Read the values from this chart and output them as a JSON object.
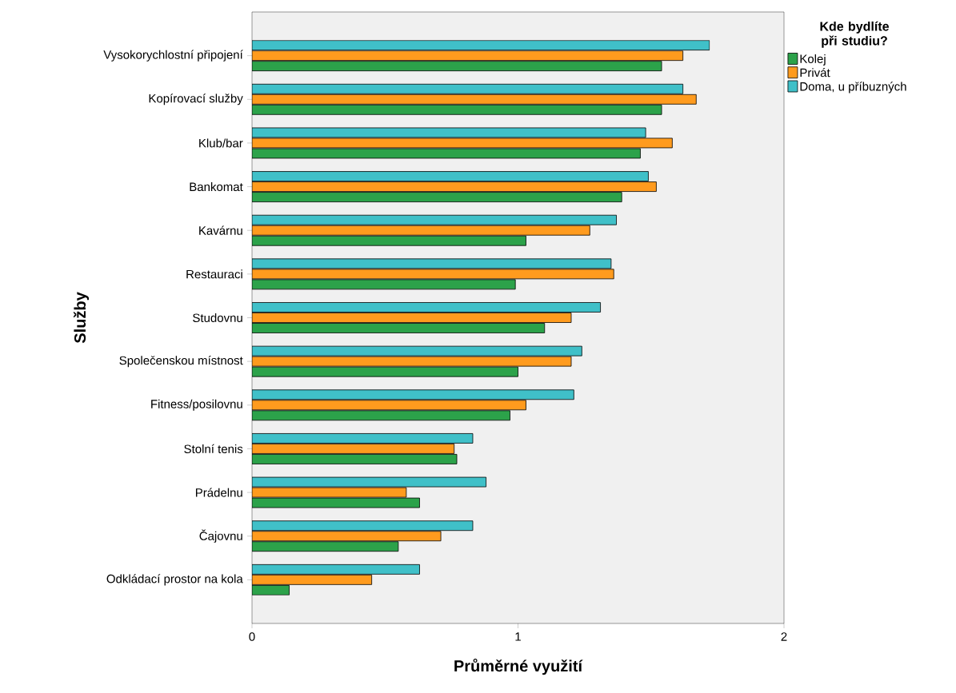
{
  "chart_data": {
    "type": "bar",
    "orientation": "horizontal",
    "xlabel": "Průměrné využití",
    "ylabel": "Služby",
    "legend_title": "Kde bydlíte při studiu?",
    "legend": "top right",
    "categories": [
      "Vysokorychlostní připojení",
      "Kopírovací služby",
      "Klub/bar",
      "Bankomat",
      "Kavárnu",
      "Restauraci",
      "Studovnu",
      "Společenskou místnost",
      "Fitness/posilovnu",
      "Stolní tenis",
      "Prádelnu",
      "Čajovnu",
      "Odkládací prostor na kola"
    ],
    "series": [
      {
        "name": "Kolej",
        "color": "#2ca24a",
        "values": [
          1.54,
          1.54,
          1.46,
          1.39,
          1.03,
          0.99,
          1.1,
          1.0,
          0.97,
          0.77,
          0.63,
          0.55,
          0.14
        ]
      },
      {
        "name": "Privát",
        "color": "#ff9b1e",
        "values": [
          1.62,
          1.67,
          1.58,
          1.52,
          1.27,
          1.36,
          1.2,
          1.2,
          1.03,
          0.76,
          0.58,
          0.71,
          0.45
        ]
      },
      {
        "name": "Doma, u příbuzných",
        "color": "#40c0c8",
        "values": [
          1.72,
          1.62,
          1.48,
          1.49,
          1.37,
          1.35,
          1.31,
          1.24,
          1.21,
          0.83,
          0.88,
          0.83,
          0.63
        ]
      }
    ],
    "xlim": [
      0,
      2
    ],
    "xticks": [
      0,
      1,
      2
    ],
    "grid": false
  }
}
